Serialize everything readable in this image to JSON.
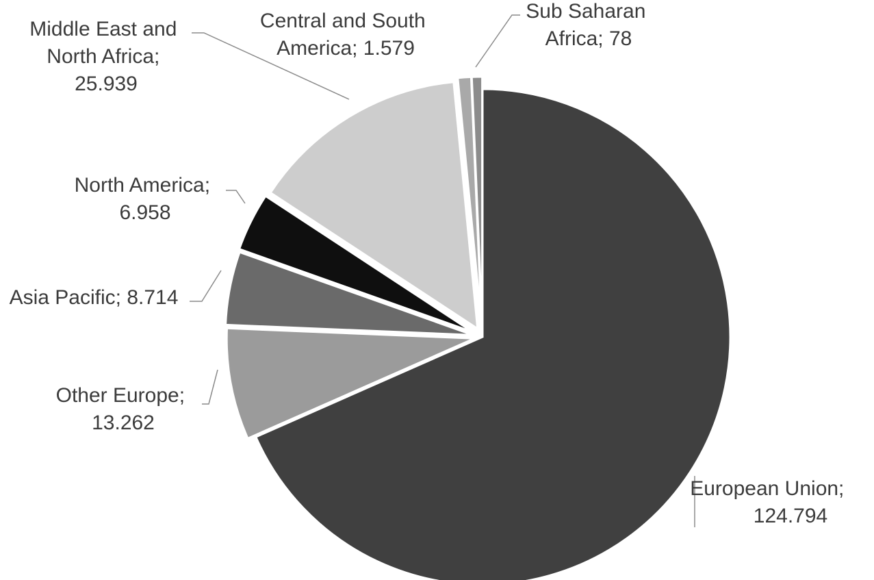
{
  "chart_data": {
    "type": "pie",
    "title": "",
    "start": "12 o'clock, clockwise",
    "slices": [
      {
        "name": "European Union",
        "value": 124.794,
        "color": "#404040",
        "label_lines": [
          "European Union;",
          "124.794"
        ]
      },
      {
        "name": "Other Europe",
        "value": 13.262,
        "color": "#9b9b9b",
        "label_lines": [
          "Other Europe;",
          "13.262"
        ]
      },
      {
        "name": "Asia Pacific",
        "value": 8.714,
        "color": "#6a6a6a",
        "label_lines": [
          "Asia Pacific; 8.714"
        ]
      },
      {
        "name": "North America",
        "value": 6.958,
        "color": "#0f0f0f",
        "label_lines": [
          "North America;",
          "6.958"
        ]
      },
      {
        "name": "Middle East and North Africa",
        "value": 25.939,
        "color": "#cdcdcd",
        "label_lines": [
          "Middle East and",
          "North Africa;",
          "25.939"
        ]
      },
      {
        "name": "Central and South America",
        "value": 1.579,
        "color": "#a9a9a9",
        "label_lines": [
          "Central and South",
          "America; 1.579"
        ]
      },
      {
        "name": "Sub Saharan Africa",
        "value": 78,
        "color": "#8c8c8c",
        "label_lines": [
          "Sub Saharan",
          "Africa; 78"
        ]
      }
    ]
  }
}
